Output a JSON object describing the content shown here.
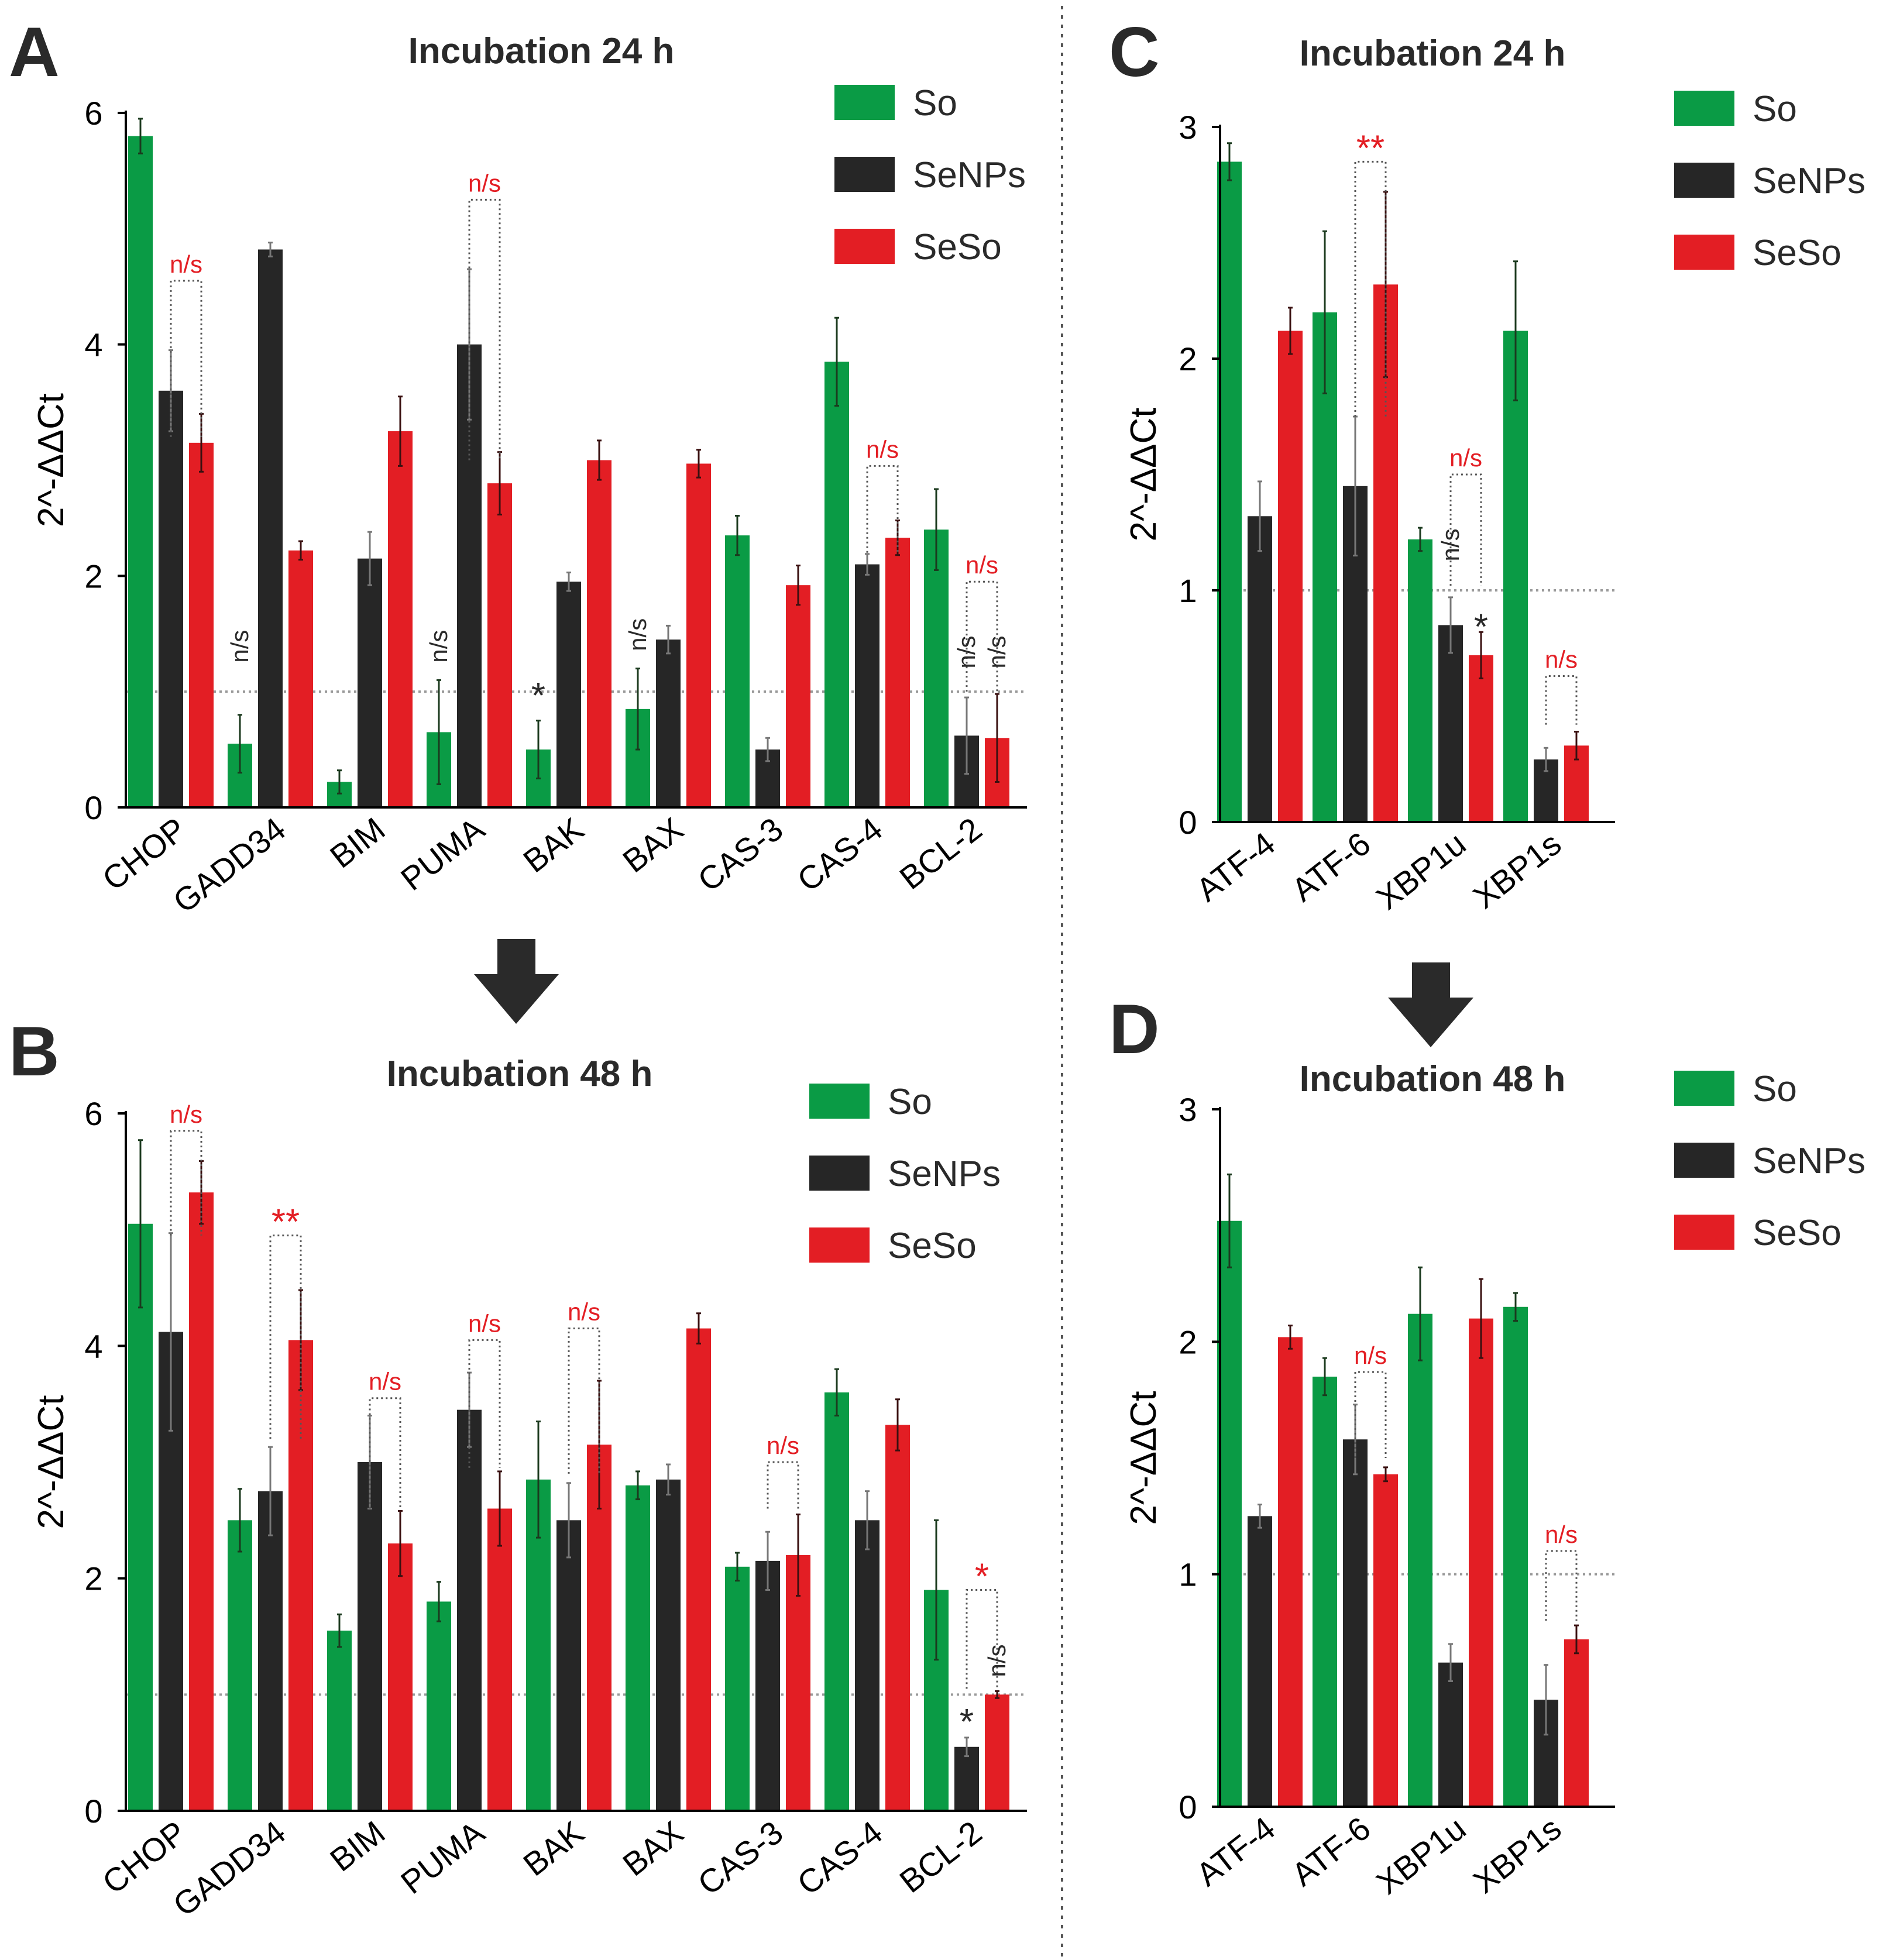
{
  "chart_data": [
    {
      "panel": "A",
      "type": "bar",
      "title": "Incubation 24 h",
      "ylabel": "2^-ΔΔCt",
      "ylim": [
        0,
        6
      ],
      "yticks": [
        "0",
        "2",
        "4",
        "6"
      ],
      "baseline": 1,
      "categories": [
        "CHOP",
        "GADD34",
        "BIM",
        "PUMA",
        "BAK",
        "BAX",
        "CAS-3",
        "CAS-4",
        "BCL-2"
      ],
      "series": [
        {
          "name": "So",
          "color": "#0a9b45",
          "values": [
            5.8,
            0.55,
            0.22,
            0.65,
            0.5,
            0.85,
            2.35,
            3.85,
            2.4
          ],
          "errors": [
            0.15,
            0.25,
            0.1,
            0.45,
            0.25,
            0.35,
            0.17,
            0.38,
            0.35
          ]
        },
        {
          "name": "SeNPs",
          "color": "#262626",
          "values": [
            3.6,
            4.82,
            2.15,
            4.0,
            1.95,
            1.45,
            0.5,
            2.1,
            0.62
          ],
          "errors": [
            0.35,
            0.06,
            0.23,
            0.65,
            0.08,
            0.12,
            0.1,
            0.09,
            0.33
          ]
        },
        {
          "name": "SeSo",
          "color": "#e31e24",
          "values": [
            3.15,
            2.22,
            3.25,
            2.8,
            3.0,
            2.97,
            1.92,
            2.33,
            0.6
          ],
          "errors": [
            0.25,
            0.08,
            0.3,
            0.27,
            0.17,
            0.12,
            0.17,
            0.15,
            0.38
          ]
        }
      ],
      "annotations": [
        {
          "text": "n/s",
          "color": "red",
          "category": "CHOP",
          "kind": "bracket",
          "from": "SeNPs",
          "to": "SeSo",
          "bottom": 3.2,
          "top": 4.55
        },
        {
          "text": "n/s",
          "color": "red",
          "category": "PUMA",
          "kind": "bracket",
          "from": "SeNPs",
          "to": "SeSo",
          "bottom": 3.0,
          "top": 5.25
        },
        {
          "text": "n/s",
          "color": "red",
          "category": "CAS-4",
          "kind": "bracket",
          "from": "SeNPs",
          "to": "SeSo",
          "bottom": 2.2,
          "top": 2.95
        },
        {
          "text": "n/s",
          "color": "red",
          "category": "BCL-2",
          "kind": "bracket",
          "from": "SeNPs",
          "to": "SeSo",
          "bottom": 1.0,
          "top": 1.95
        },
        {
          "text": "n/s",
          "color": "black",
          "category": "GADD34",
          "series": "So",
          "kind": "vertical",
          "level": 1.2
        },
        {
          "text": "n/s",
          "color": "black",
          "category": "PUMA",
          "series": "So",
          "kind": "vertical",
          "level": 1.2
        },
        {
          "text": "*",
          "color": "black",
          "category": "BAK",
          "series": "So",
          "kind": "star",
          "level": 1.0
        },
        {
          "text": "n/s",
          "color": "black",
          "category": "BAX",
          "series": "So",
          "kind": "vertical",
          "level": 1.3
        },
        {
          "text": "n/s",
          "color": "black",
          "category": "BCL-2",
          "series": "SeNPs",
          "kind": "vertical",
          "level": 1.15
        },
        {
          "text": "n/s",
          "color": "black",
          "category": "BCL-2",
          "series": "SeSo",
          "kind": "vertical",
          "level": 1.15
        }
      ]
    },
    {
      "panel": "B",
      "type": "bar",
      "title": "Incubation 48 h",
      "ylabel": "2^-ΔΔCt",
      "ylim": [
        0,
        6
      ],
      "yticks": [
        "0",
        "2",
        "4",
        "6"
      ],
      "baseline": 1,
      "categories": [
        "CHOP",
        "GADD34",
        "BIM",
        "PUMA",
        "BAK",
        "BAX",
        "CAS-3",
        "CAS-4",
        "BCL-2"
      ],
      "series": [
        {
          "name": "So",
          "color": "#0a9b45",
          "values": [
            5.05,
            2.5,
            1.55,
            1.8,
            2.85,
            2.8,
            2.1,
            3.6,
            1.9
          ],
          "errors": [
            0.72,
            0.27,
            0.14,
            0.17,
            0.5,
            0.12,
            0.12,
            0.2,
            0.6
          ]
        },
        {
          "name": "SeNPs",
          "color": "#262626",
          "values": [
            4.12,
            2.75,
            3.0,
            3.45,
            2.5,
            2.85,
            2.15,
            2.5,
            0.55
          ],
          "errors": [
            0.85,
            0.38,
            0.4,
            0.32,
            0.32,
            0.13,
            0.25,
            0.25,
            0.08
          ]
        },
        {
          "name": "SeSo",
          "color": "#e31e24",
          "values": [
            5.32,
            4.05,
            2.3,
            2.6,
            3.15,
            4.15,
            2.2,
            3.32,
            1.0
          ],
          "errors": [
            0.27,
            0.43,
            0.28,
            0.32,
            0.55,
            0.13,
            0.35,
            0.22,
            0.03
          ]
        }
      ],
      "annotations": [
        {
          "text": "n/s",
          "color": "red",
          "category": "CHOP",
          "kind": "bracket",
          "from": "SeNPs",
          "to": "SeSo",
          "bottom": 4.95,
          "top": 5.85
        },
        {
          "text": "**",
          "color": "red",
          "category": "GADD34",
          "kind": "bracket",
          "from": "SeNPs",
          "to": "SeSo",
          "bottom": 3.2,
          "top": 4.95
        },
        {
          "text": "n/s",
          "color": "red",
          "category": "BIM",
          "kind": "bracket",
          "from": "SeNPs",
          "to": "SeSo",
          "bottom": 2.6,
          "top": 3.55
        },
        {
          "text": "n/s",
          "color": "red",
          "category": "PUMA",
          "kind": "bracket",
          "from": "SeNPs",
          "to": "SeSo",
          "bottom": 2.95,
          "top": 4.05
        },
        {
          "text": "n/s",
          "color": "red",
          "category": "BAK",
          "kind": "bracket",
          "from": "SeNPs",
          "to": "SeSo",
          "bottom": 2.9,
          "top": 4.15
        },
        {
          "text": "n/s",
          "color": "red",
          "category": "CAS-3",
          "kind": "bracket",
          "from": "SeNPs",
          "to": "SeSo",
          "bottom": 2.6,
          "top": 3.0
        },
        {
          "text": "*",
          "color": "red",
          "category": "BCL-2",
          "kind": "bracket",
          "from": "SeNPs",
          "to": "SeSo",
          "bottom": 1.05,
          "top": 1.9
        },
        {
          "text": "*",
          "color": "black",
          "category": "BCL-2",
          "series": "SeNPs",
          "kind": "star",
          "level": 0.8
        },
        {
          "text": "n/s",
          "color": "black",
          "category": "BCL-2",
          "series": "SeSo",
          "kind": "vertical",
          "level": 1.1
        }
      ]
    },
    {
      "panel": "C",
      "type": "bar",
      "title": "Incubation 24 h",
      "ylabel": "2^-ΔΔCt",
      "ylim": [
        0,
        3
      ],
      "yticks": [
        "0",
        "1",
        "2",
        "3"
      ],
      "baseline": 1,
      "categories": [
        "ATF-4",
        "ATF-6",
        "XBP1u",
        "XBP1s"
      ],
      "series": [
        {
          "name": "So",
          "color": "#0a9b45",
          "values": [
            2.85,
            2.2,
            1.22,
            2.12
          ],
          "errors": [
            0.08,
            0.35,
            0.05,
            0.3
          ]
        },
        {
          "name": "SeNPs",
          "color": "#262626",
          "values": [
            1.32,
            1.45,
            0.85,
            0.27
          ],
          "errors": [
            0.15,
            0.3,
            0.12,
            0.05
          ]
        },
        {
          "name": "SeSo",
          "color": "#e31e24",
          "values": [
            2.12,
            2.32,
            0.72,
            0.33
          ],
          "errors": [
            0.1,
            0.4,
            0.1,
            0.06
          ]
        }
      ],
      "annotations": [
        {
          "text": "**",
          "color": "red",
          "category": "ATF-6",
          "kind": "bracket",
          "from": "SeNPs",
          "to": "SeSo",
          "bottom": 1.75,
          "top": 2.85
        },
        {
          "text": "n/s",
          "color": "red",
          "category": "XBP1u",
          "kind": "bracket",
          "from": "SeNPs",
          "to": "SeSo",
          "bottom": 1.02,
          "top": 1.5
        },
        {
          "text": "n/s",
          "color": "red",
          "category": "XBP1s",
          "kind": "bracket",
          "from": "SeNPs",
          "to": "SeSo",
          "bottom": 0.42,
          "top": 0.63
        },
        {
          "text": "n/s",
          "color": "black",
          "category": "XBP1u",
          "series": "SeNPs",
          "kind": "vertical",
          "level": 1.1
        },
        {
          "text": "*",
          "color": "black",
          "category": "XBP1u",
          "series": "SeSo",
          "kind": "star",
          "level": 0.86
        }
      ]
    },
    {
      "panel": "D",
      "type": "bar",
      "title": "Incubation 48 h",
      "ylabel": "2^-ΔΔCt",
      "ylim": [
        0,
        3
      ],
      "yticks": [
        "0",
        "1",
        "2",
        "3"
      ],
      "baseline": 1,
      "categories": [
        "ATF-4",
        "ATF-6",
        "XBP1u",
        "XBP1s"
      ],
      "series": [
        {
          "name": "So",
          "color": "#0a9b45",
          "values": [
            2.52,
            1.85,
            2.12,
            2.15
          ],
          "errors": [
            0.2,
            0.08,
            0.2,
            0.06
          ]
        },
        {
          "name": "SeNPs",
          "color": "#262626",
          "values": [
            1.25,
            1.58,
            0.62,
            0.46
          ],
          "errors": [
            0.05,
            0.15,
            0.08,
            0.15
          ]
        },
        {
          "name": "SeSo",
          "color": "#e31e24",
          "values": [
            2.02,
            1.43,
            2.1,
            0.72
          ],
          "errors": [
            0.05,
            0.03,
            0.17,
            0.06
          ]
        }
      ],
      "annotations": [
        {
          "text": "n/s",
          "color": "red",
          "category": "ATF-6",
          "kind": "bracket",
          "from": "SeNPs",
          "to": "SeSo",
          "bottom": 1.5,
          "top": 1.87
        },
        {
          "text": "n/s",
          "color": "red",
          "category": "XBP1s",
          "kind": "bracket",
          "from": "SeNPs",
          "to": "SeSo",
          "bottom": 0.8,
          "top": 1.1
        }
      ]
    }
  ]
}
